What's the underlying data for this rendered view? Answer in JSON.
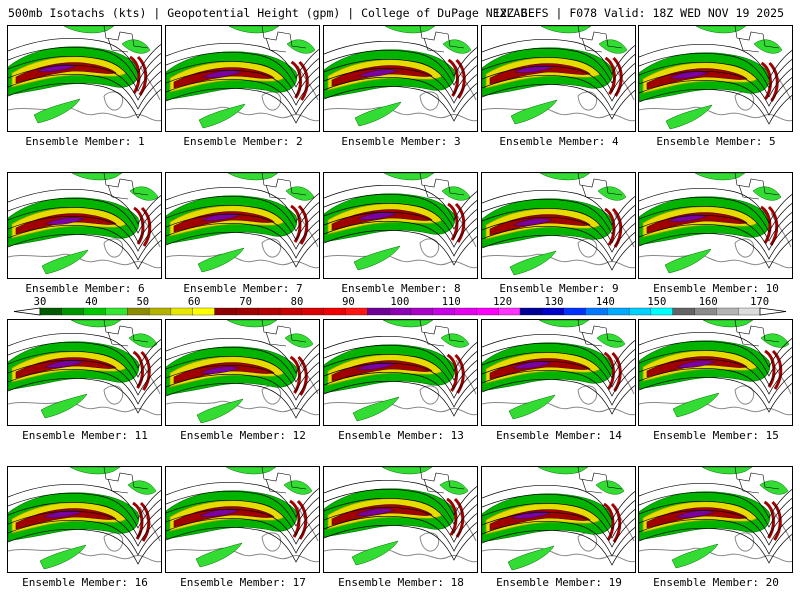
{
  "header": {
    "left": "500mb Isotachs (kts) | Geopotential Height (gpm) | College of DuPage NEXLAB",
    "right": "12Z GEFS | F078 Valid: 18Z WED NOV 19 2025"
  },
  "members": [
    {
      "label": "Ensemble Member: 1"
    },
    {
      "label": "Ensemble Member: 2"
    },
    {
      "label": "Ensemble Member: 3"
    },
    {
      "label": "Ensemble Member: 4"
    },
    {
      "label": "Ensemble Member: 5"
    },
    {
      "label": "Ensemble Member: 6"
    },
    {
      "label": "Ensemble Member: 7"
    },
    {
      "label": "Ensemble Member: 8"
    },
    {
      "label": "Ensemble Member: 9"
    },
    {
      "label": "Ensemble Member: 10"
    },
    {
      "label": "Ensemble Member: 11"
    },
    {
      "label": "Ensemble Member: 12"
    },
    {
      "label": "Ensemble Member: 13"
    },
    {
      "label": "Ensemble Member: 14"
    },
    {
      "label": "Ensemble Member: 15"
    },
    {
      "label": "Ensemble Member: 16"
    },
    {
      "label": "Ensemble Member: 17"
    },
    {
      "label": "Ensemble Member: 18"
    },
    {
      "label": "Ensemble Member: 19"
    },
    {
      "label": "Ensemble Member: 20"
    }
  ],
  "legend": {
    "labels": [
      "30",
      "40",
      "50",
      "60",
      "70",
      "80",
      "90",
      "100",
      "110",
      "120",
      "130",
      "140",
      "150",
      "160",
      "170"
    ],
    "colors": [
      "#005a00",
      "#009600",
      "#00c800",
      "#32e632",
      "#8c8c00",
      "#b4b400",
      "#e6e600",
      "#ffff00",
      "#8c0000",
      "#a00000",
      "#b40000",
      "#c80000",
      "#dc0000",
      "#f00000",
      "#ff1414",
      "#6e0096",
      "#8c00b4",
      "#aa00c8",
      "#c800e6",
      "#e600f0",
      "#ff00ff",
      "#ff32ff",
      "#000096",
      "#0000c8",
      "#0032ff",
      "#0078ff",
      "#00aaff",
      "#00d2ff",
      "#00ffff",
      "#646464",
      "#8c8c8c",
      "#b4b4b4",
      "#dcdcdc"
    ]
  },
  "map_colors": {
    "green": "#00b400",
    "light_green": "#32dc32",
    "dark_green": "#006e00",
    "olive": "#a0a000",
    "yellow": "#e6dc00",
    "red": "#a00000",
    "purple": "#7a00a0",
    "height_contour": "#000000",
    "coastline": "#888888"
  }
}
